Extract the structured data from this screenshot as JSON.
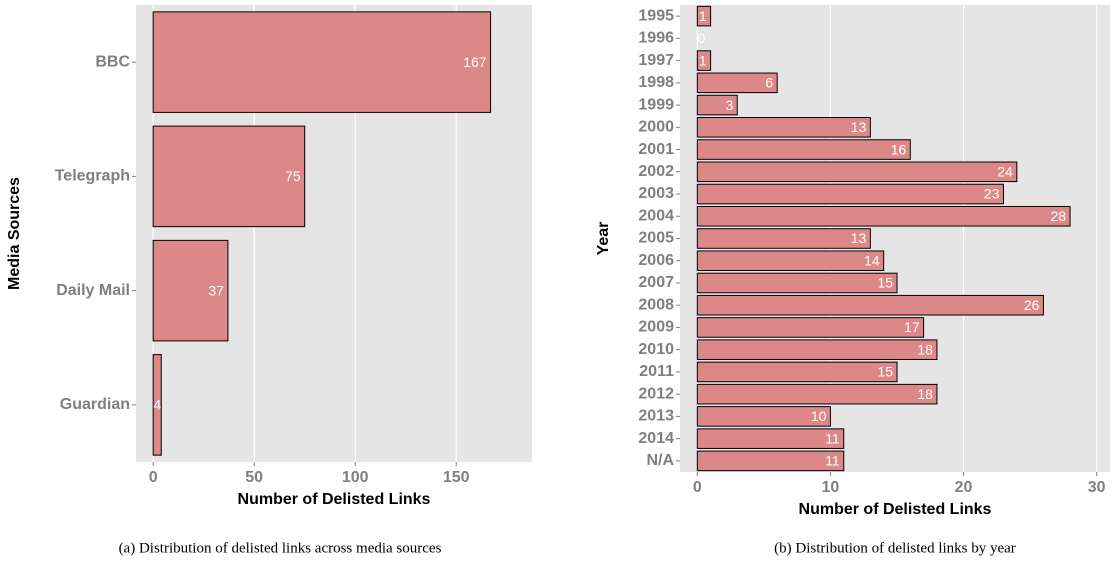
{
  "chart_data": [
    {
      "type": "bar",
      "orientation": "horizontal",
      "caption": "(a)  Distribution of delisted links across media sources",
      "xlabel": "Number of Delisted Links",
      "ylabel": "Media Sources",
      "categories": [
        "BBC",
        "Telegraph",
        "Daily Mail",
        "Guardian"
      ],
      "values": [
        167,
        75,
        37,
        4
      ],
      "color": "#dd8888",
      "xlim": [
        -8.5,
        187.5
      ],
      "xticks": [
        0,
        50,
        100,
        150
      ],
      "grid": true
    },
    {
      "type": "bar",
      "orientation": "horizontal",
      "caption": "(b)  Distribution of delisted links by year",
      "xlabel": "Number of Delisted Links",
      "ylabel": "Year",
      "categories": [
        "1995",
        "1996",
        "1997",
        "1998",
        "1999",
        "2000",
        "2001",
        "2002",
        "2003",
        "2004",
        "2005",
        "2006",
        "2007",
        "2008",
        "2009",
        "2010",
        "2011",
        "2012",
        "2013",
        "2014",
        "N/A"
      ],
      "values": [
        1,
        0,
        1,
        6,
        3,
        13,
        16,
        24,
        23,
        28,
        13,
        14,
        15,
        26,
        17,
        18,
        15,
        18,
        10,
        11,
        11
      ],
      "color": "#dd8888",
      "xlim": [
        -1.3,
        31
      ],
      "xticks": [
        0,
        10,
        20,
        30
      ],
      "grid": true
    }
  ]
}
